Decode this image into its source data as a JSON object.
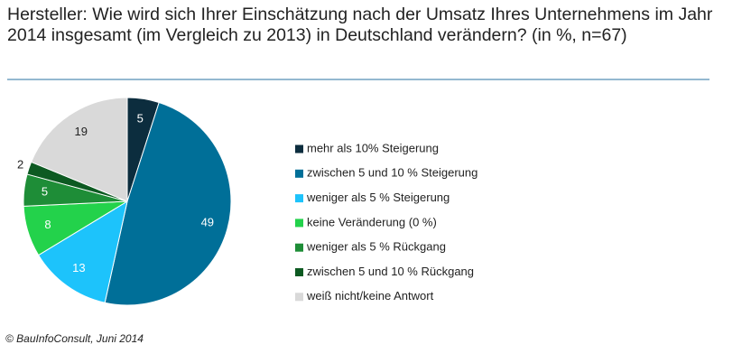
{
  "chart_data": {
    "type": "pie",
    "title": "Hersteller: Wie wird sich Ihrer Einschätzung nach der Umsatz Ihres Unternehmens im Jahr 2014 insgesamt (im Vergleich zu 2013) in Deutschland verändern? (in %, n=67)",
    "categories": [
      "mehr als 10% Steigerung",
      "zwischen 5 und 10 % Steigerung",
      "weniger als 5 % Steigerung",
      "keine Veränderung (0 %)",
      "weniger als 5 % Rückgang",
      "zwischen 5 und 10 % Rückgang",
      "weiß nicht/keine Antwort"
    ],
    "values": [
      5,
      49,
      13,
      8,
      5,
      2,
      19
    ],
    "colors": [
      "#0c2d3e",
      "#006f98",
      "#1dc3fb",
      "#23d24b",
      "#1e8d37",
      "#0d5a22",
      "#d9d9d9"
    ],
    "legend": "right",
    "source": "© BauInfoConsult, Juni 2014"
  }
}
